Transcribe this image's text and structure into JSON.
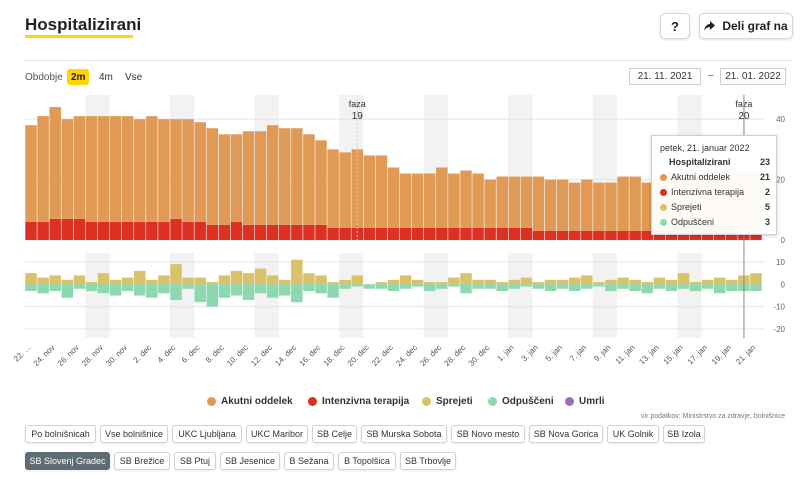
{
  "header": {
    "title": "Hospitalizirani",
    "help_label": "?",
    "share_label": "Deli graf na"
  },
  "period": {
    "label": "Obdobje",
    "options": [
      "2m",
      "4m",
      "Vse"
    ],
    "selected": "2m"
  },
  "date_range": {
    "from": "21. 11. 2021",
    "separator": "–",
    "to": "21. 01. 2022"
  },
  "colors": {
    "acute": "#e09a55",
    "icu": "#dc3023",
    "admitted": "#d8c36a",
    "released": "#8ed8b0",
    "deceased": "#9b6fb8",
    "selected_button": "#5f6b73",
    "accent": "#ffd400"
  },
  "chart_data": {
    "type": "bar",
    "x": [
      "22. nov",
      "23. nov",
      "24. nov",
      "25. nov",
      "26. nov",
      "27. nov",
      "28. nov",
      "29. nov",
      "30. nov",
      "1. dec",
      "2. dec",
      "3. dec",
      "4. dec",
      "5. dec",
      "6. dec",
      "7. dec",
      "8. dec",
      "9. dec",
      "10. dec",
      "11. dec",
      "12. dec",
      "13. dec",
      "14. dec",
      "15. dec",
      "16. dec",
      "17. dec",
      "18. dec",
      "19. dec",
      "20. dec",
      "21. dec",
      "22. dec",
      "23. dec",
      "24. dec",
      "25. dec",
      "26. dec",
      "27. dec",
      "28. dec",
      "29. dec",
      "30. dec",
      "31. dec",
      "1. jan",
      "2. jan",
      "3. jan",
      "4. jan",
      "5. jan",
      "6. jan",
      "7. jan",
      "8. jan",
      "9. jan",
      "10. jan",
      "11. jan",
      "12. jan",
      "13. jan",
      "14. jan",
      "15. jan",
      "16. jan",
      "17. jan",
      "18. jan",
      "19. jan",
      "20. jan",
      "21. jan"
    ],
    "x_tick_labels": [
      "22. ...",
      "24. nov",
      "26. nov",
      "28. nov",
      "30. nov",
      "2. dec",
      "4. dec",
      "6. dec",
      "8. dec",
      "10. dec",
      "12. dec",
      "14. dec",
      "16. dec",
      "18. dec",
      "20. dec",
      "22. dec",
      "24. dec",
      "26. dec",
      "28. dec",
      "30. dec",
      "1. jan",
      "3. jan",
      "5. jan",
      "7. jan",
      "9. jan",
      "11. jan",
      "13. jan",
      "15. jan",
      "17. jan",
      "19. jan",
      "21. jan"
    ],
    "upper": {
      "ylim": [
        0,
        48
      ],
      "yticks": [
        0,
        20,
        40
      ],
      "series": [
        {
          "name": "Intenzivna terapija",
          "color": "#dc3023",
          "values": [
            6,
            6,
            7,
            7,
            7,
            6,
            6,
            6,
            6,
            6,
            6,
            6,
            7,
            6,
            6,
            5,
            5,
            6,
            5,
            5,
            5,
            5,
            5,
            5,
            5,
            4,
            4,
            4,
            4,
            4,
            4,
            4,
            4,
            4,
            4,
            4,
            4,
            4,
            4,
            4,
            4,
            4,
            3,
            3,
            3,
            3,
            3,
            3,
            3,
            3,
            3,
            3,
            3,
            3,
            3,
            3,
            3,
            3,
            3,
            2,
            2
          ]
        },
        {
          "name": "Akutni oddelek",
          "color": "#e09a55",
          "values": [
            32,
            35,
            37,
            33,
            34,
            35,
            35,
            35,
            35,
            34,
            35,
            34,
            33,
            34,
            33,
            32,
            30,
            29,
            31,
            31,
            33,
            32,
            32,
            30,
            28,
            26,
            25,
            26,
            24,
            24,
            20,
            18,
            18,
            18,
            20,
            18,
            19,
            18,
            16,
            17,
            17,
            17,
            18,
            17,
            17,
            16,
            17,
            16,
            16,
            18,
            18,
            16,
            18,
            19,
            20,
            20,
            19,
            20,
            21,
            21,
            21
          ]
        }
      ],
      "phases": [
        {
          "label": "faza",
          "number": "19"
        },
        {
          "label": "faza",
          "number": "20"
        }
      ]
    },
    "lower": {
      "ylim": [
        -24,
        14
      ],
      "yticks": [
        10,
        0,
        -10,
        -20
      ],
      "series": [
        {
          "name": "Sprejeti",
          "color": "#d8c36a",
          "values": [
            5,
            3,
            4,
            2,
            4,
            1,
            5,
            2,
            3,
            6,
            2,
            4,
            9,
            3,
            3,
            1,
            4,
            6,
            5,
            7,
            4,
            2,
            11,
            5,
            4,
            1,
            2,
            4,
            0,
            1,
            2,
            4,
            2,
            1,
            1,
            3,
            5,
            2,
            2,
            1,
            2,
            3,
            1,
            2,
            2,
            3,
            4,
            1,
            2,
            3,
            2,
            1,
            3,
            2,
            5,
            1,
            2,
            3,
            2,
            4,
            5
          ]
        },
        {
          "name": "Odpuščeni",
          "color": "#8ed8b0",
          "values": [
            -3,
            -4,
            -3,
            -6,
            -2,
            -3,
            -4,
            -5,
            -3,
            -5,
            -6,
            -4,
            -7,
            -2,
            -8,
            -10,
            -6,
            -5,
            -7,
            -4,
            -6,
            -5,
            -8,
            -3,
            -4,
            -6,
            -2,
            -1,
            -2,
            -2,
            -3,
            -2,
            -1,
            -3,
            -2,
            -1,
            -4,
            -2,
            -2,
            -3,
            -2,
            -1,
            -2,
            -3,
            -2,
            -3,
            -2,
            -1,
            -3,
            -2,
            -3,
            -4,
            -2,
            -3,
            -2,
            -3,
            -2,
            -4,
            -3,
            -3,
            -3
          ]
        }
      ]
    },
    "legend": [
      "Akutni oddelek",
      "Intenzivna terapija",
      "Sprejeti",
      "Odpuščeni",
      "Umrli"
    ]
  },
  "tooltip": {
    "date": "petek, 21. januar 2022",
    "total_label": "Hospitalizirani",
    "total_value": "23",
    "rows": [
      {
        "label": "Akutni oddelek",
        "value": "21"
      },
      {
        "label": "Intenzivna terapija",
        "value": "2"
      },
      {
        "label": "Sprejeti",
        "value": "5"
      },
      {
        "label": "Odpuščeni",
        "value": "3"
      }
    ]
  },
  "source": "vir podatkov: Ministrstvo za zdravje, bolnišnice",
  "hospitals": [
    "Po bolnišnicah",
    "Vse bolnišnice",
    "UKC Ljubljana",
    "UKC Maribor",
    "SB Celje",
    "SB Murska Sobota",
    "SB Novo mesto",
    "SB Nova Gorica",
    "UK Golnik",
    "SB Izola",
    "SB Slovenj Gradec",
    "SB Brežice",
    "SB Ptuj",
    "SB Jesenice",
    "B Sežana",
    "B Topolšica",
    "SB Trbovlje"
  ],
  "hospital_selected": "SB Slovenj Gradec"
}
